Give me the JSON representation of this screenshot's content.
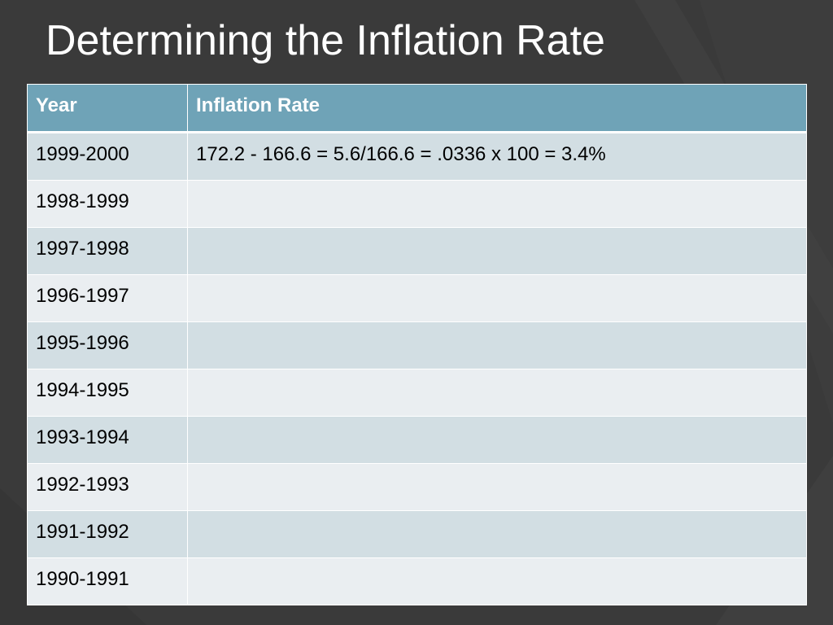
{
  "slide": {
    "title": "Determining the Inflation Rate"
  },
  "colors": {
    "background": "#3a3a3a",
    "header_fill": "#6fa3b7",
    "row_band_dark": "#d2dee3",
    "row_band_light": "#eaeef1"
  },
  "table": {
    "headers": [
      "Year",
      "Inflation Rate"
    ],
    "rows": [
      {
        "year": "1999-2000",
        "rate": "172.2 - 166.6 = 5.6/166.6 = .0336 x 100 = 3.4%"
      },
      {
        "year": "1998-1999",
        "rate": ""
      },
      {
        "year": "1997-1998",
        "rate": ""
      },
      {
        "year": "1996-1997",
        "rate": ""
      },
      {
        "year": "1995-1996",
        "rate": ""
      },
      {
        "year": "1994-1995",
        "rate": ""
      },
      {
        "year": "1993-1994",
        "rate": ""
      },
      {
        "year": "1992-1993",
        "rate": ""
      },
      {
        "year": "1991-1992",
        "rate": ""
      },
      {
        "year": "1990-1991",
        "rate": ""
      }
    ]
  }
}
